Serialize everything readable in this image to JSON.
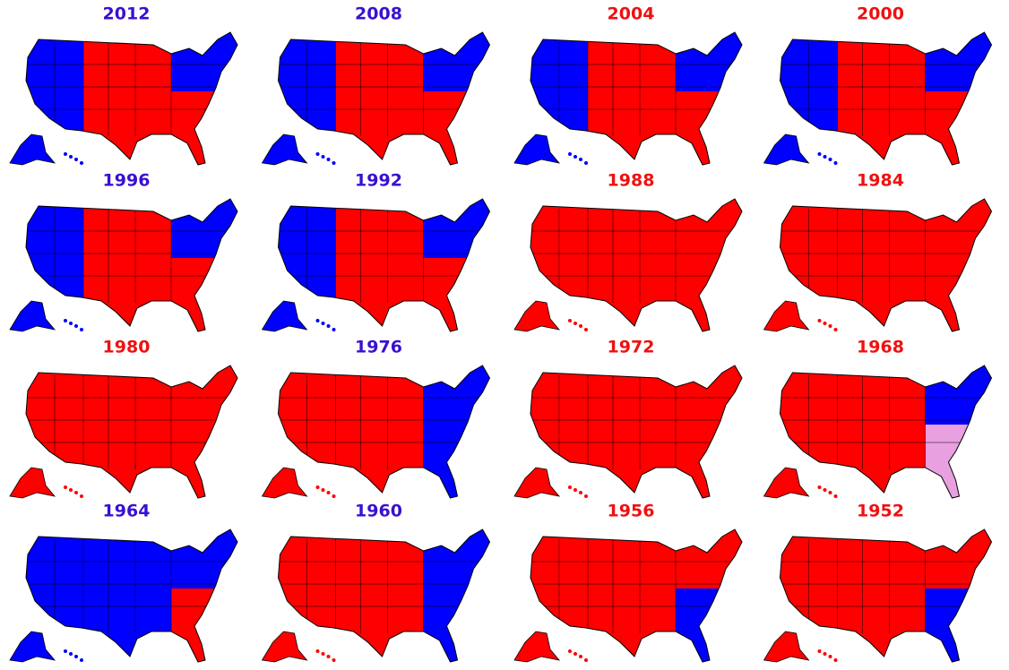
{
  "maps": [
    {
      "year": "2012",
      "title_color": "#3a10d0",
      "regions": {
        "west": "#0000ff",
        "middle": "#ff0000",
        "south": "#ff0000",
        "northeast": "#0000ff"
      }
    },
    {
      "year": "2008",
      "title_color": "#3a10d0",
      "regions": {
        "west": "#0000ff",
        "middle": "#ff0000",
        "south": "#ff0000",
        "northeast": "#0000ff"
      }
    },
    {
      "year": "2004",
      "title_color": "#ee1111",
      "regions": {
        "west": "#0000ff",
        "middle": "#ff0000",
        "south": "#ff0000",
        "northeast": "#0000ff"
      }
    },
    {
      "year": "2000",
      "title_color": "#ee1111",
      "regions": {
        "west": "#0000ff",
        "middle": "#ff0000",
        "south": "#ff0000",
        "northeast": "#0000ff"
      }
    },
    {
      "year": "1996",
      "title_color": "#3a10d0",
      "regions": {
        "west": "#0000ff",
        "middle": "#ff0000",
        "south": "#ff0000",
        "northeast": "#0000ff"
      }
    },
    {
      "year": "1992",
      "title_color": "#3a10d0",
      "regions": {
        "west": "#0000ff",
        "middle": "#ff0000",
        "south": "#ff0000",
        "northeast": "#0000ff"
      }
    },
    {
      "year": "1988",
      "title_color": "#ee1111",
      "regions": {
        "west": "#ff0000",
        "middle": "#ff0000",
        "south": "#ff0000",
        "northeast": "#ff0000"
      }
    },
    {
      "year": "1984",
      "title_color": "#ee1111",
      "regions": {
        "west": "#ff0000",
        "middle": "#ff0000",
        "south": "#ff0000",
        "northeast": "#ff0000"
      }
    },
    {
      "year": "1980",
      "title_color": "#ee1111",
      "regions": {
        "west": "#ff0000",
        "middle": "#ff0000",
        "south": "#ff0000",
        "northeast": "#ff0000"
      }
    },
    {
      "year": "1976",
      "title_color": "#3a10d0",
      "regions": {
        "west": "#ff0000",
        "middle": "#ff0000",
        "south": "#0000ff",
        "northeast": "#0000ff"
      }
    },
    {
      "year": "1972",
      "title_color": "#ee1111",
      "regions": {
        "west": "#ff0000",
        "middle": "#ff0000",
        "south": "#ff0000",
        "northeast": "#ff0000"
      }
    },
    {
      "year": "1968",
      "title_color": "#ee1111",
      "regions": {
        "west": "#ff0000",
        "middle": "#ff0000",
        "south": "#e8a0e0",
        "northeast": "#0000ff"
      }
    },
    {
      "year": "1964",
      "title_color": "#3a10d0",
      "regions": {
        "west": "#0000ff",
        "middle": "#0000ff",
        "south": "#ff0000",
        "northeast": "#0000ff"
      }
    },
    {
      "year": "1960",
      "title_color": "#3a10d0",
      "regions": {
        "west": "#ff0000",
        "middle": "#ff0000",
        "south": "#0000ff",
        "northeast": "#0000ff"
      }
    },
    {
      "year": "1956",
      "title_color": "#ee1111",
      "regions": {
        "west": "#ff0000",
        "middle": "#ff0000",
        "south": "#0000ff",
        "northeast": "#ff0000"
      }
    },
    {
      "year": "1952",
      "title_color": "#ee1111",
      "regions": {
        "west": "#ff0000",
        "middle": "#ff0000",
        "south": "#0000ff",
        "northeast": "#ff0000"
      }
    }
  ]
}
